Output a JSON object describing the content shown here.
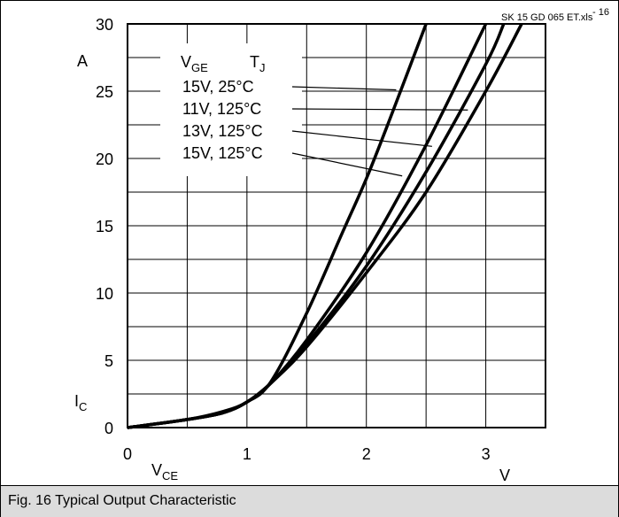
{
  "chart_data": {
    "type": "line",
    "source_label": "SK 15 GD 065 ET.xls",
    "figure_number": "16",
    "caption": "Fig. 16 Typical Output Characteristic",
    "y_unit": "A",
    "x_unit": "V",
    "xlim": [
      0,
      3.5
    ],
    "ylim": [
      0,
      30
    ],
    "x_ticks": [
      "0",
      "1",
      "2",
      "3"
    ],
    "y_ticks": [
      "0",
      "5",
      "10",
      "15",
      "20",
      "25",
      "30"
    ],
    "grid": true,
    "legend_header": {
      "vge": "V",
      "vge_sub": "GE",
      "tj": "T",
      "tj_sub": "J"
    },
    "series": [
      {
        "name": "15V,   25°C",
        "x": [
          0,
          0.5,
          0.8,
          1.0,
          1.2,
          1.5,
          1.8,
          2.0,
          2.2,
          2.5
        ],
        "y": [
          0,
          0.6,
          1.2,
          1.9,
          3.4,
          8.5,
          14.5,
          18.5,
          23.0,
          30.0
        ]
      },
      {
        "name": "11V,  125°C",
        "x": [
          0,
          0.5,
          0.8,
          1.0,
          1.2,
          1.5,
          2.0,
          2.5,
          3.0
        ],
        "y": [
          0,
          0.6,
          1.1,
          1.9,
          3.3,
          6.5,
          13.0,
          21.0,
          30.0
        ]
      },
      {
        "name": "13V,  125°C",
        "x": [
          0,
          0.5,
          0.8,
          1.0,
          1.2,
          1.5,
          2.0,
          2.5,
          3.0,
          3.15
        ],
        "y": [
          0,
          0.6,
          1.1,
          1.9,
          3.3,
          6.2,
          12.0,
          19.0,
          27.0,
          30.0
        ]
      },
      {
        "name": "15V,  125°C",
        "x": [
          0,
          0.5,
          0.8,
          1.0,
          1.2,
          1.5,
          2.0,
          2.5,
          3.0,
          3.3
        ],
        "y": [
          0,
          0.6,
          1.1,
          1.9,
          3.3,
          6.0,
          11.5,
          17.5,
          25.0,
          30.0
        ]
      }
    ]
  },
  "axes": {
    "y_label_main": "I",
    "y_label_sub": "C",
    "x_label_main": "V",
    "x_label_sub": "CE"
  },
  "caption_bar": {
    "text": "Fig. 16 Typical Output Characteristic"
  },
  "colors": {
    "line": "#000000",
    "grid": "#000000",
    "caption_bg": "#dcdcdc"
  }
}
